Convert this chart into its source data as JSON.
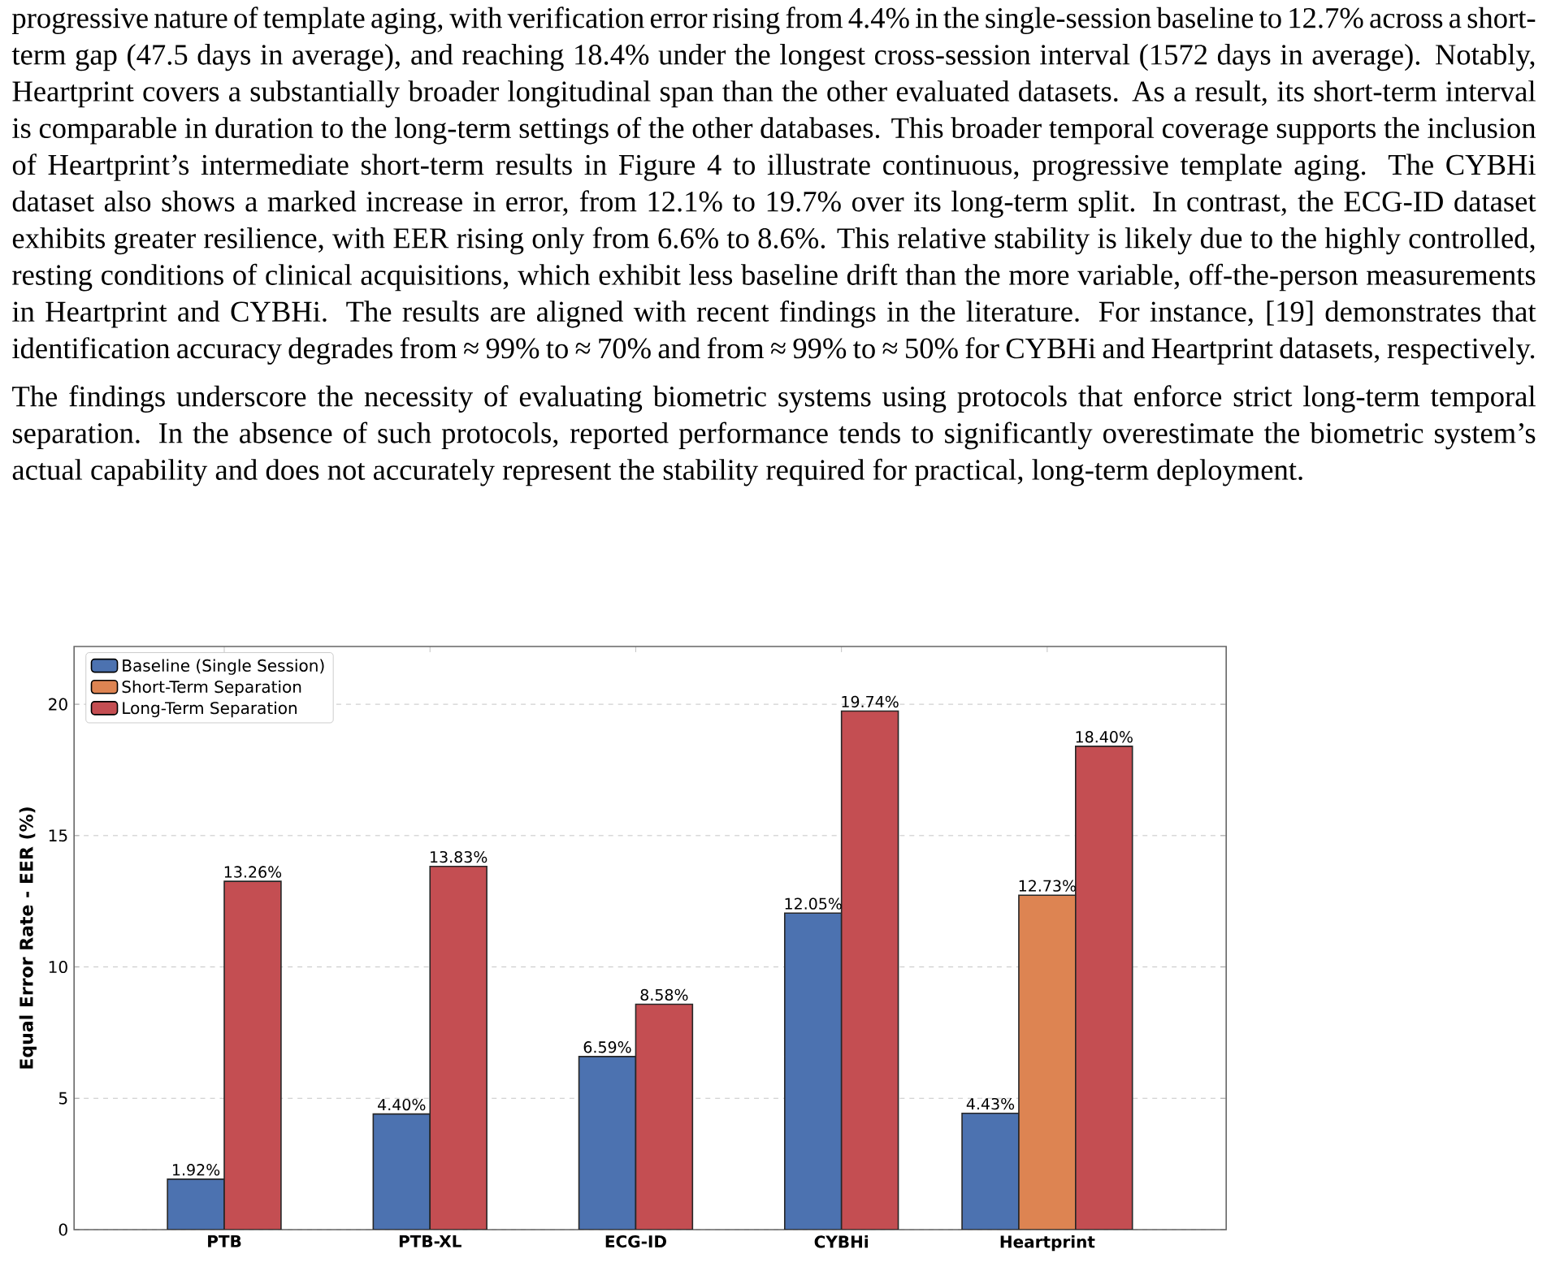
{
  "chart_data": {
    "type": "bar",
    "ylabel": "Equal Error Rate - EER (%)",
    "categories": [
      "PTB",
      "PTB-XL",
      "ECG-ID",
      "CYBHi",
      "Heartprint"
    ],
    "series": [
      {
        "name": "Baseline (Single Session)",
        "color": "#4c72b0",
        "values": [
          1.92,
          4.4,
          6.59,
          12.05,
          4.43
        ],
        "value_labels": [
          "1.92%",
          "4.40%",
          "6.59%",
          "12.05%",
          "4.43%"
        ]
      },
      {
        "name": "Short-Term Separation",
        "color": "#dd8452",
        "values": [
          null,
          null,
          null,
          null,
          12.73
        ],
        "value_labels": [
          null,
          null,
          null,
          null,
          "12.73%"
        ]
      },
      {
        "name": "Long-Term Separation",
        "color": "#c44e52",
        "values": [
          13.26,
          13.83,
          8.58,
          19.74,
          18.4
        ],
        "value_labels": [
          "13.26%",
          "13.83%",
          "8.58%",
          "19.74%",
          "18.40%"
        ]
      }
    ],
    "ylim": [
      0,
      22.2
    ],
    "yticks": [
      0,
      5,
      10,
      15,
      20
    ],
    "grid": "y",
    "legend": "top left",
    "annotations": [
      "progressive nature of template aging, with verification error rising from 4.4% in the single-session baseline to 12.7% across a short-term gap (47.5 days in average), and reaching 18.4% under the longest cross-session interval (1572 days in average). Notably, Heartprint covers a substantially broader longitudinal span than the other evaluated datasets. As a result, its short-term interval is comparable in duration to the long-term settings of the other databases. This broader temporal coverage supports the inclusion of Heartprint’s intermediate short-term results in Figure 4 to illustrate continuous, progressive template aging. The CYBHi dataset also shows a marked increase in error, from 12.1% to 19.7% over its long-term split. In contrast, the ECG-ID dataset exhibits greater resilience, with EER rising only from 6.6% to 8.6%. This relative stability is likely due to the highly controlled, resting conditions of clinical acquisitions, which exhibit less baseline drift than the more variable, off-the-person measurements in Heartprint and CYBHi. The results are aligned with recent findings in the literature. For instance, [19] demonstrates that identification accuracy degrades from ≈ 99% to ≈ 70% and from ≈ 99% to ≈ 50% for CYBHi and Heartprint datasets, respectively.",
      "The findings underscore the necessity of evaluating biometric systems using protocols that enforce strict long-term temporal separation. In the absence of such protocols, reported performance tends to significantly overestimate the biometric system’s actual capability and does not accurately represent the stability required for practical, long-term deployment."
    ]
  }
}
